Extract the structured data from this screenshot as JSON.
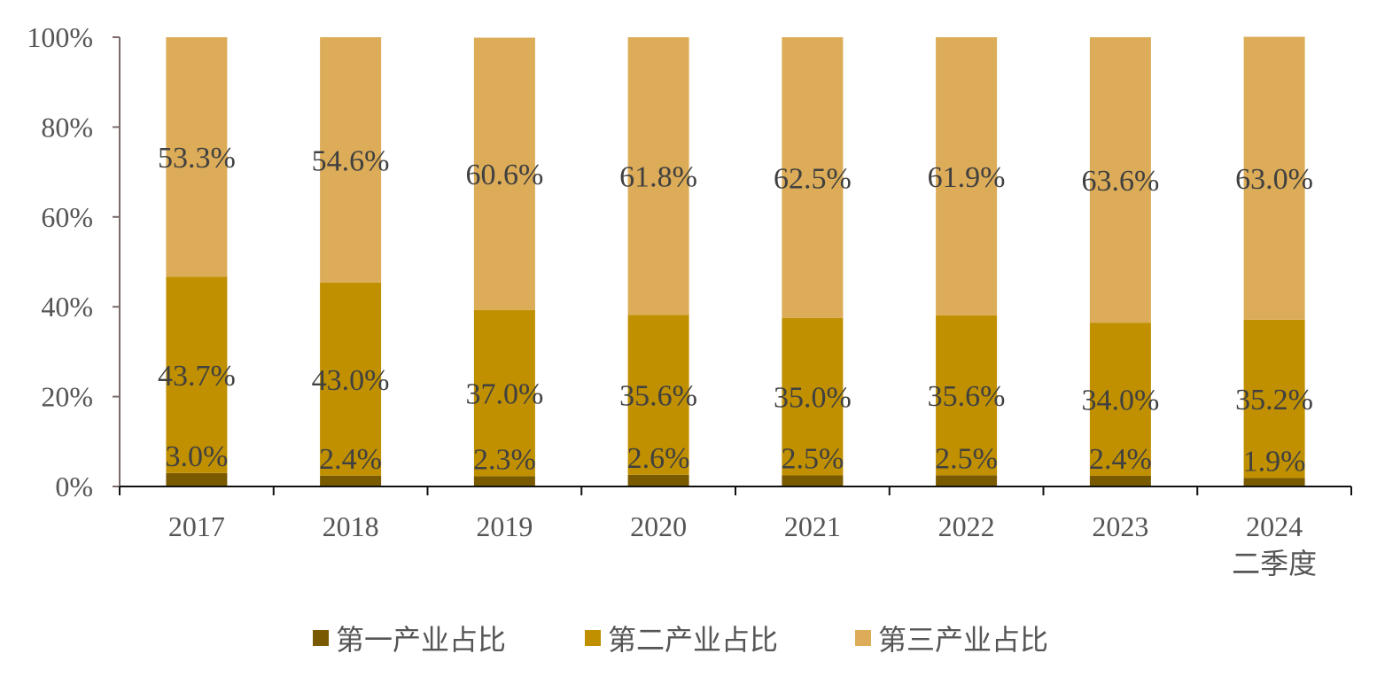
{
  "chart_data": {
    "type": "bar",
    "stacked": true,
    "categories": [
      [
        "2017"
      ],
      [
        "2018"
      ],
      [
        "2019"
      ],
      [
        "2020"
      ],
      [
        "2021"
      ],
      [
        "2022"
      ],
      [
        "2023"
      ],
      [
        "2024",
        "二季度"
      ]
    ],
    "series": [
      {
        "name": "第一产业占比",
        "color": "#7a5a00",
        "values": [
          3.0,
          2.4,
          2.3,
          2.6,
          2.5,
          2.5,
          2.4,
          1.9
        ],
        "labels": [
          "3.0%",
          "2.4%",
          "2.3%",
          "2.6%",
          "2.5%",
          "2.5%",
          "2.4%",
          "1.9%"
        ]
      },
      {
        "name": "第二产业占比",
        "color": "#c09000",
        "values": [
          43.7,
          43.0,
          37.0,
          35.6,
          35.0,
          35.6,
          34.0,
          35.2
        ],
        "labels": [
          "43.7%",
          "43.0%",
          "37.0%",
          "35.6%",
          "35.0%",
          "35.6%",
          "34.0%",
          "35.2%"
        ]
      },
      {
        "name": "第三产业占比",
        "color": "#dcac58",
        "values": [
          53.3,
          54.6,
          60.6,
          61.8,
          62.5,
          61.9,
          63.6,
          63.0
        ],
        "labels": [
          "53.3%",
          "54.6%",
          "60.6%",
          "61.8%",
          "62.5%",
          "61.9%",
          "63.6%",
          "63.0%"
        ]
      }
    ],
    "ylim": [
      0,
      100
    ],
    "yticks": [
      "0%",
      "20%",
      "40%",
      "60%",
      "80%",
      "100%"
    ],
    "xlabel": "",
    "ylabel": "",
    "grid": false,
    "legend": "bottom"
  }
}
